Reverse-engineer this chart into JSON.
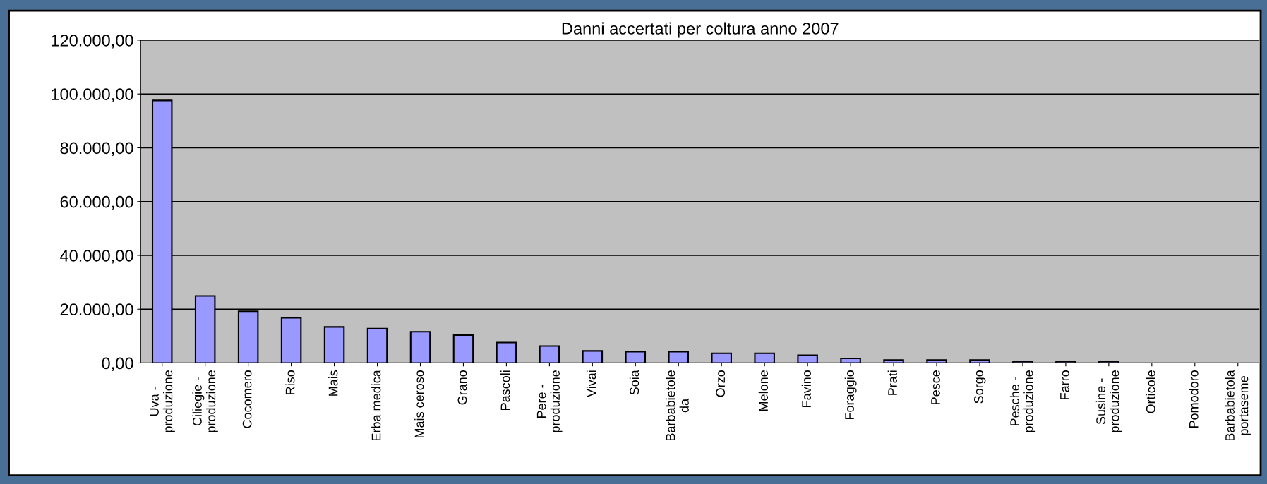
{
  "chart_data": {
    "type": "bar",
    "title": "Danni accertati per coltura anno 2007",
    "categories": [
      "Uva -\nproduzione",
      "Ciliegie -\nproduzione",
      "Cocomero",
      "Riso",
      "Mais",
      "Erba medica",
      "Mais ceroso",
      "Grano",
      "Pascoli",
      "Pere -\nproduzione",
      "Vivai",
      "Soia",
      "Barbabietole\nda",
      "Orzo",
      "Melone",
      "Favino",
      "Foraggio",
      "Prati",
      "Pesce",
      "Sorgo",
      "Pesche -\nproduzione",
      "Farro",
      "Susine -\nproduzione",
      "Orticole",
      "Pomodoro",
      "Barbabietola\nportaseme"
    ],
    "values": [
      97600,
      24900,
      19200,
      16800,
      13400,
      12800,
      11600,
      10400,
      7600,
      6300,
      4500,
      4200,
      4200,
      3600,
      3600,
      2900,
      1700,
      1100,
      1100,
      1100,
      600,
      600,
      600,
      0,
      0,
      0
    ],
    "color": "#9999ff",
    "ylim": [
      0,
      120000
    ],
    "yticks": [
      {
        "value": 0,
        "label": "0,00"
      },
      {
        "value": 20000,
        "label": "20.000,00"
      },
      {
        "value": 40000,
        "label": "40.000,00"
      },
      {
        "value": 60000,
        "label": "60.000,00"
      },
      {
        "value": 80000,
        "label": "80.000,00"
      },
      {
        "value": 100000,
        "label": "100.000,00"
      },
      {
        "value": 120000,
        "label": "120.000,00"
      }
    ],
    "grid": "y",
    "legend": false
  }
}
